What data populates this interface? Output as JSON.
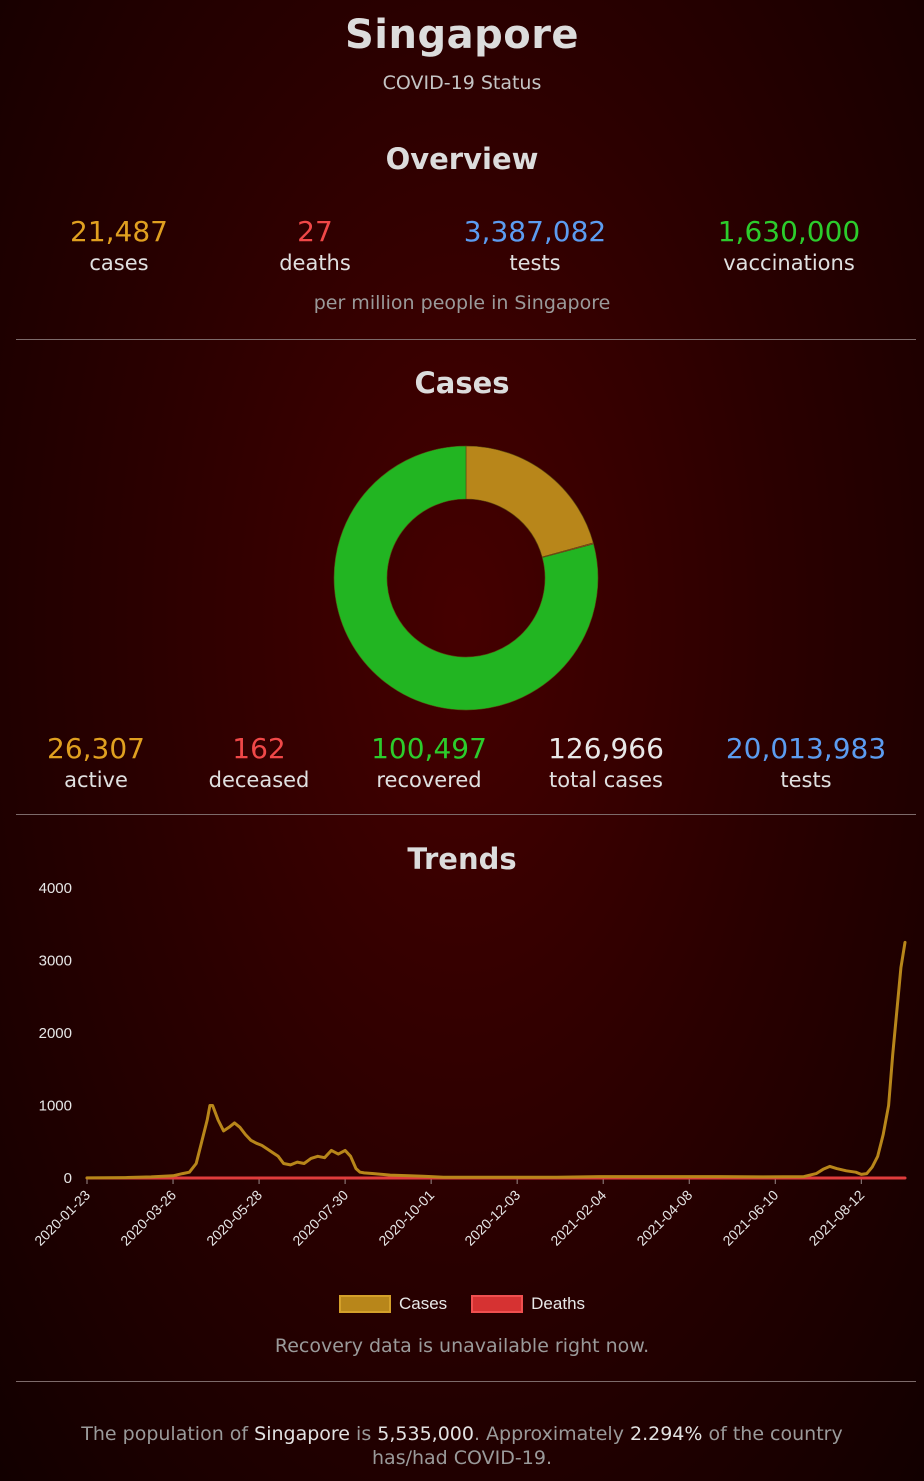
{
  "header": {
    "country": "Singapore",
    "subtitle": "COVID-19 Status"
  },
  "overview": {
    "heading": "Overview",
    "stats": [
      {
        "value": "21,487",
        "label": "cases",
        "color": "#e0a020"
      },
      {
        "value": "27",
        "label": "deaths",
        "color": "#f04848"
      },
      {
        "value": "3,387,082",
        "label": "tests",
        "color": "#5c9cf0"
      },
      {
        "value": "1,630,000",
        "label": "vaccinations",
        "color": "#2ccc2c"
      }
    ],
    "note": "per million people in Singapore"
  },
  "cases": {
    "heading": "Cases",
    "stats": [
      {
        "value": "26,307",
        "label": "active",
        "color": "#e0a020"
      },
      {
        "value": "162",
        "label": "deceased",
        "color": "#f04848"
      },
      {
        "value": "100,497",
        "label": "recovered",
        "color": "#2ccc2c"
      },
      {
        "value": "126,966",
        "label": "total cases",
        "color": "#e8e8e8"
      },
      {
        "value": "20,013,983",
        "label": "tests",
        "color": "#5c9cf0"
      }
    ]
  },
  "trends": {
    "heading": "Trends",
    "note": "Recovery data is unavailable right now."
  },
  "footer": {
    "p1": "The population of ",
    "country": "Singapore",
    "p2": " is ",
    "population": "5,535,000",
    "p3": ". Approximately ",
    "percent": "2.294%",
    "p4": " of the country has/had COVID-19."
  },
  "chart_data": [
    {
      "type": "pie",
      "variant": "doughnut",
      "categories": [
        "active",
        "deceased",
        "recovered"
      ],
      "values": [
        26307,
        162,
        100497
      ],
      "colors": [
        "#b8861a",
        "#e03c3c",
        "#22b522"
      ]
    },
    {
      "type": "line",
      "ylim": [
        0,
        4000
      ],
      "yticks": [
        0,
        1000,
        2000,
        3000,
        4000
      ],
      "xticks": [
        "2020-01-23",
        "2020-03-26",
        "2020-05-28",
        "2020-07-30",
        "2020-10-01",
        "2020-12-03",
        "2021-02-04",
        "2021-04-08",
        "2021-06-10",
        "2021-08-12"
      ],
      "xstart": "2020-01-23",
      "xend": "2021-09-13",
      "series": [
        {
          "name": "Cases",
          "color": "#b8861a",
          "x": [
            "2020-01-23",
            "2020-02-20",
            "2020-03-10",
            "2020-03-26",
            "2020-04-02",
            "2020-04-07",
            "2020-04-12",
            "2020-04-16",
            "2020-04-20",
            "2020-04-22",
            "2020-04-24",
            "2020-04-28",
            "2020-05-02",
            "2020-05-06",
            "2020-05-10",
            "2020-05-14",
            "2020-05-18",
            "2020-05-22",
            "2020-05-26",
            "2020-05-30",
            "2020-06-03",
            "2020-06-07",
            "2020-06-11",
            "2020-06-15",
            "2020-06-20",
            "2020-06-25",
            "2020-06-30",
            "2020-07-05",
            "2020-07-10",
            "2020-07-15",
            "2020-07-20",
            "2020-07-25",
            "2020-07-30",
            "2020-08-03",
            "2020-08-07",
            "2020-08-10",
            "2020-08-13",
            "2020-08-20",
            "2020-09-01",
            "2020-09-15",
            "2020-09-25",
            "2020-10-01",
            "2020-10-10",
            "2020-11-01",
            "2020-12-01",
            "2021-01-01",
            "2021-02-01",
            "2021-03-01",
            "2021-04-01",
            "2021-05-01",
            "2021-06-01",
            "2021-07-01",
            "2021-07-10",
            "2021-07-15",
            "2021-07-20",
            "2021-07-25",
            "2021-08-01",
            "2021-08-08",
            "2021-08-12",
            "2021-08-16",
            "2021-08-20",
            "2021-08-24",
            "2021-08-28",
            "2021-09-01",
            "2021-09-04",
            "2021-09-07",
            "2021-09-10",
            "2021-09-13"
          ],
          "values": [
            1,
            5,
            15,
            30,
            60,
            80,
            200,
            500,
            800,
            1000,
            1000,
            800,
            650,
            700,
            760,
            700,
            600,
            520,
            480,
            450,
            400,
            350,
            300,
            200,
            180,
            220,
            200,
            270,
            300,
            280,
            380,
            330,
            380,
            300,
            130,
            80,
            70,
            60,
            40,
            30,
            25,
            20,
            10,
            10,
            10,
            10,
            20,
            20,
            20,
            20,
            15,
            20,
            60,
            120,
            160,
            130,
            100,
            80,
            50,
            60,
            150,
            300,
            600,
            1000,
            1700,
            2300,
            2900,
            3250
          ]
        },
        {
          "name": "Deaths",
          "color": "#e03c3c",
          "x": [
            "2020-01-23",
            "2021-09-13"
          ],
          "values": [
            0,
            0
          ]
        }
      ]
    }
  ]
}
